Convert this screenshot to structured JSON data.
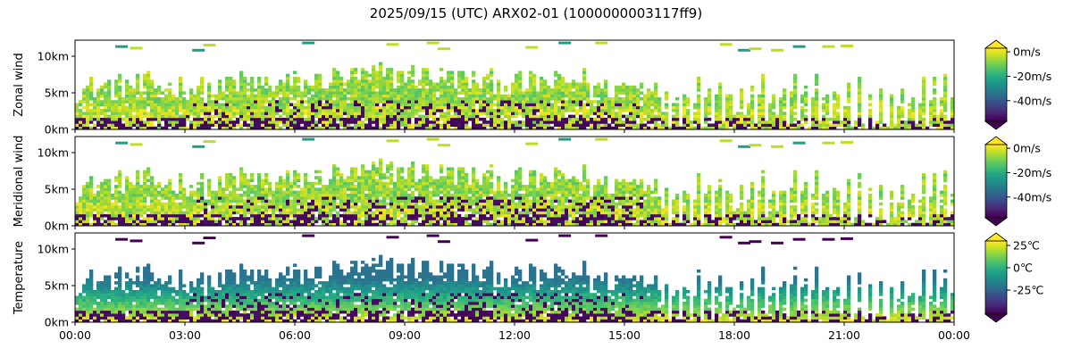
{
  "title": "2025/09/15 (UTC) ARX02-01 (1000000003117ff9)",
  "chart_data": [
    {
      "type": "heatmap",
      "ylabel": "Zonal wind",
      "x_ticks": [
        "00:00",
        "03:00",
        "06:00",
        "09:00",
        "12:00",
        "15:00",
        "18:00",
        "21:00",
        "00:00"
      ],
      "x_range_hours": [
        0,
        24
      ],
      "y_ticks": [
        "0km",
        "5km",
        "10km"
      ],
      "y_range_km": [
        0,
        12.2
      ],
      "colormap": "viridis",
      "colorbar": {
        "ticks": [
          "0m/s",
          "-20m/s",
          "-40m/s"
        ],
        "range": [
          -57,
          3
        ],
        "extend": "both"
      }
    },
    {
      "type": "heatmap",
      "ylabel": "Meridional wind",
      "x_ticks": [
        "00:00",
        "03:00",
        "06:00",
        "09:00",
        "12:00",
        "15:00",
        "18:00",
        "21:00",
        "00:00"
      ],
      "x_range_hours": [
        0,
        24
      ],
      "y_ticks": [
        "0km",
        "5km",
        "10km"
      ],
      "y_range_km": [
        0,
        12.2
      ],
      "colormap": "viridis",
      "colorbar": {
        "ticks": [
          "0m/s",
          "-20m/s",
          "-40m/s"
        ],
        "range": [
          -57,
          3
        ],
        "extend": "both"
      }
    },
    {
      "type": "heatmap",
      "ylabel": "Temperature",
      "x_ticks": [
        "00:00",
        "03:00",
        "06:00",
        "09:00",
        "12:00",
        "15:00",
        "18:00",
        "21:00",
        "00:00"
      ],
      "x_range_hours": [
        0,
        24
      ],
      "y_ticks": [
        "0km",
        "5km",
        "10km"
      ],
      "y_range_km": [
        0,
        12.2
      ],
      "colormap": "viridis",
      "colorbar": {
        "ticks": [
          "25℃",
          "0℃",
          "-25℃"
        ],
        "range": [
          -52,
          30
        ],
        "extend": "both"
      }
    }
  ]
}
